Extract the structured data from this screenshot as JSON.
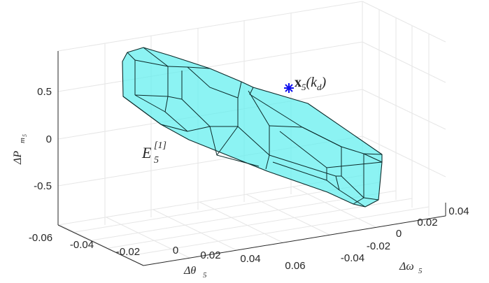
{
  "chart_data": {
    "type": "3d-polytope",
    "xlabel": {
      "symbol": "Δθ",
      "sub": "5"
    },
    "ylabel": {
      "symbol": "Δω",
      "sub": "5"
    },
    "zlabel": {
      "symbol": "ΔP",
      "sub": "m",
      "subsub": "5"
    },
    "x_ticks": [
      "-0.06",
      "-0.04",
      "-0.02",
      "0",
      "0.02",
      "0.04",
      "0.06"
    ],
    "y_ticks": [
      "-0.04",
      "-0.02",
      "0",
      "0.02",
      "0.04"
    ],
    "z_ticks": [
      "-0.5",
      "0",
      "0.5"
    ],
    "xlim": [
      -0.06,
      0.06
    ],
    "ylim": [
      -0.05,
      0.05
    ],
    "zlim": [
      -0.9,
      0.9
    ],
    "grid": true,
    "set_label": {
      "symbol": "E",
      "sub": "5",
      "sup": "[1]"
    },
    "set_color": "#5fefef",
    "marker": {
      "label_bold": "x",
      "label_sub": "5",
      "label_rest": "(k",
      "label_sub2": "d",
      "label_close": ")",
      "color": "#1010ee",
      "symbol": "*"
    }
  }
}
